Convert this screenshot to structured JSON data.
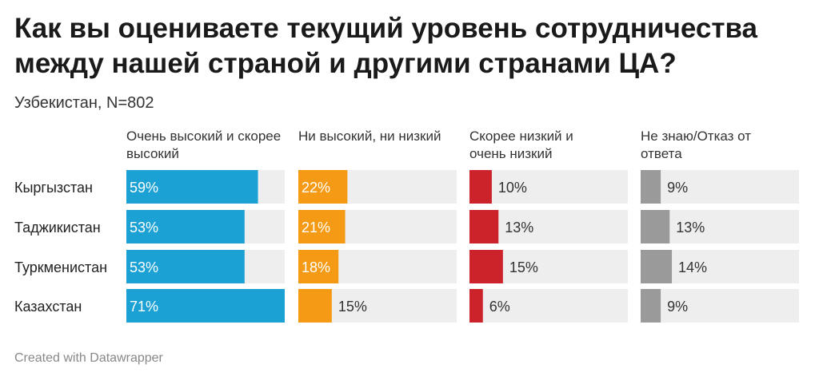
{
  "title": "Как вы оцениваете текущий уровень сотрудничества между нашей страной и другими странами ЦА?",
  "subtitle": "Узбекистан, N=802",
  "credit": "Created with Datawrapper",
  "chart_data": {
    "type": "bar",
    "orientation": "horizontal",
    "layout": "small-multiples",
    "title": "Как вы оцениваете текущий уровень сотрудничества между нашей страной и другими странами ЦА?",
    "subtitle": "Узбекистан, N=802",
    "categories": [
      "Кыргызстан",
      "Таджикистан",
      "Туркменистан",
      "Казахстан"
    ],
    "xlim": [
      0,
      100
    ],
    "unit": "%",
    "series": [
      {
        "name": "Очень высокий и скорее высокий",
        "color": "#1ba1d4",
        "values": [
          59,
          53,
          53,
          71
        ]
      },
      {
        "name": "Ни высокий, ни низкий",
        "color": "#f59a14",
        "values": [
          22,
          21,
          18,
          15
        ]
      },
      {
        "name": "Скорее низкий и очень низкий",
        "color": "#cc2229",
        "values": [
          10,
          13,
          15,
          6
        ]
      },
      {
        "name": "Не знаю/Отказ от ответа",
        "color": "#9a9a9a",
        "values": [
          9,
          13,
          14,
          9
        ]
      }
    ],
    "track_color": "#eeeeee",
    "grid": false
  }
}
